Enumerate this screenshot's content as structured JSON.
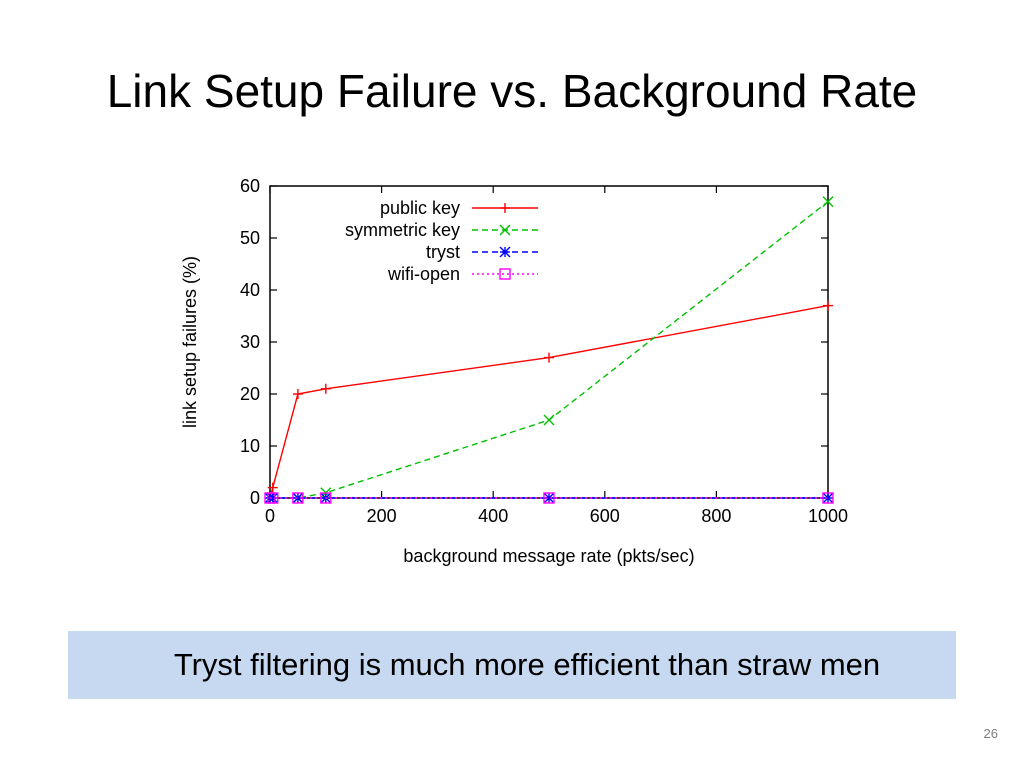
{
  "slide": {
    "title": "Link Setup Failure vs. Background Rate",
    "callout": "Tryst filtering is much more efficient than straw men",
    "page_number": "26"
  },
  "chart_data": {
    "type": "line",
    "xlabel": "background message rate (pkts/sec)",
    "ylabel": "link setup failures (%)",
    "xlim": [
      0,
      1000
    ],
    "ylim": [
      0,
      60
    ],
    "xticks": [
      0,
      200,
      400,
      600,
      800,
      1000
    ],
    "yticks": [
      0,
      10,
      20,
      30,
      40,
      50,
      60
    ],
    "grid": false,
    "legend_position": "top-left",
    "series": [
      {
        "name": "public key",
        "color": "#ff0000",
        "dash": "solid",
        "marker": "plus",
        "x": [
          0,
          5,
          50,
          100,
          500,
          1000
        ],
        "y": [
          0,
          2,
          20,
          21,
          27,
          37
        ]
      },
      {
        "name": "symmetric key",
        "color": "#00c000",
        "dash": "dashed",
        "marker": "cross",
        "x": [
          0,
          5,
          50,
          100,
          500,
          1000
        ],
        "y": [
          0,
          0,
          0,
          1,
          15,
          57
        ]
      },
      {
        "name": "tryst",
        "color": "#0000ff",
        "dash": "dashed",
        "marker": "star",
        "x": [
          0,
          5,
          50,
          100,
          500,
          1000
        ],
        "y": [
          0,
          0,
          0,
          0,
          0,
          0
        ]
      },
      {
        "name": "wifi-open",
        "color": "#ff00ff",
        "dash": "dotted",
        "marker": "square",
        "x": [
          0,
          5,
          50,
          100,
          500,
          1000
        ],
        "y": [
          0,
          0,
          0,
          0,
          0,
          0
        ]
      }
    ]
  }
}
